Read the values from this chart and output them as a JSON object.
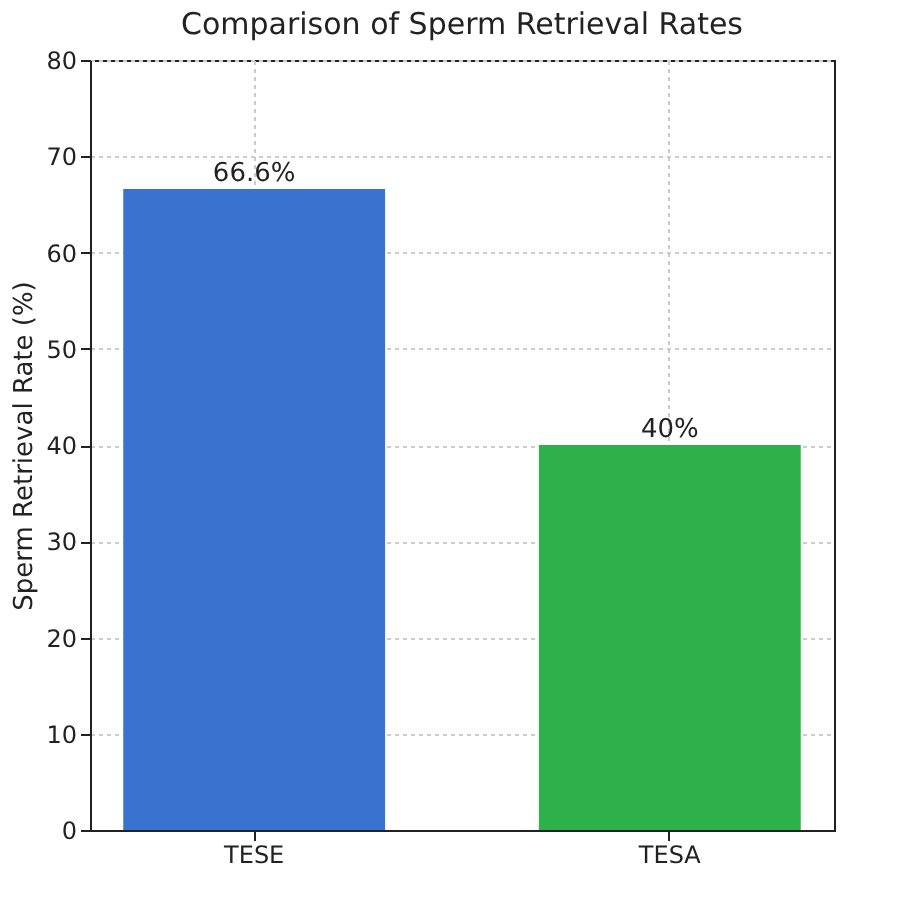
{
  "chart_data": {
    "type": "bar",
    "title": "Comparison of Sperm Retrieval Rates",
    "ylabel": "Sperm Retrieval Rate (%)",
    "categories": [
      "TESE",
      "TESA"
    ],
    "values": [
      66.6,
      40
    ],
    "colors": [
      "#3a72d0",
      "#2eb04a"
    ],
    "value_labels": [
      "66.6%",
      "40%"
    ],
    "ylim": [
      0,
      80
    ],
    "yticks": [
      0,
      10,
      20,
      30,
      40,
      50,
      60,
      70,
      80
    ],
    "grid": true
  }
}
